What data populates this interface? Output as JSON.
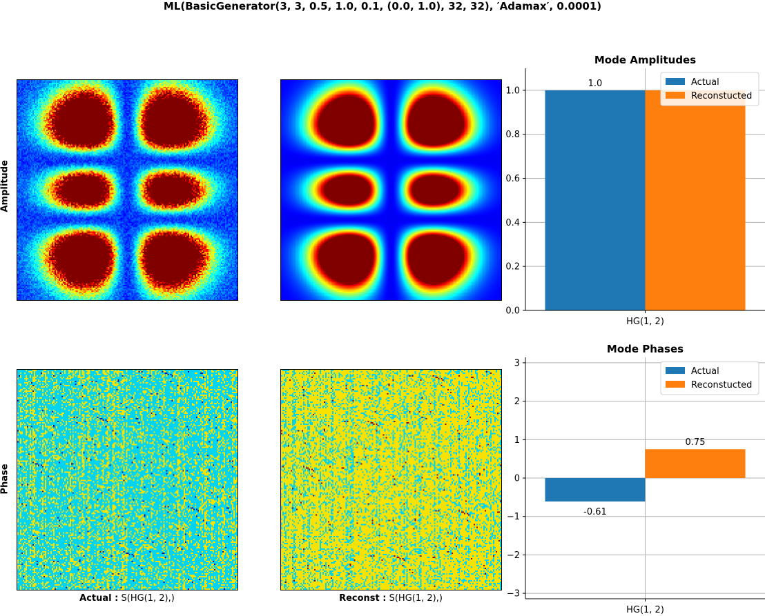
{
  "figure": {
    "title": "ML(BasicGenerator(3, 3, 0.5, 1.0, 0.1, (0.0, 1.0), 32, 32), ′Adamax′, 0.0001)",
    "row_labels": [
      "Amplitude",
      "Phase"
    ],
    "image_labels": [
      {
        "bold": "Actual :",
        "text": " S(HG(1, 2),)"
      },
      {
        "bold": "Reconst :",
        "text": " S(HG(1, 2),)"
      }
    ],
    "images": [
      {
        "name": "actual-amplitude",
        "kind": "amplitude",
        "mode": "HG(1, 2)",
        "noise": true,
        "colormap": "jet"
      },
      {
        "name": "reconstructed-amplitude",
        "kind": "amplitude",
        "mode": "HG(1, 2)",
        "noise": false,
        "colormap": "jet"
      },
      {
        "name": "actual-phase",
        "kind": "phase",
        "dominant": "cyan",
        "colormap": "jet"
      },
      {
        "name": "reconstructed-phase",
        "kind": "phase",
        "dominant": "yellow",
        "colormap": "jet"
      }
    ]
  },
  "chart_data": [
    {
      "type": "bar",
      "title": "Mode Amplitudes",
      "categories": [
        "HG(1, 2)"
      ],
      "series": [
        {
          "name": "Actual",
          "values": [
            1.0
          ],
          "color": "#1f77b4"
        },
        {
          "name": "Reconstucted",
          "values": [
            1.0
          ],
          "color": "#ff7f0e"
        }
      ],
      "data_labels": [
        "1.0",
        ""
      ],
      "ylim": [
        0,
        1.1
      ],
      "yticks": [
        0.0,
        0.2,
        0.4,
        0.6,
        0.8,
        1.0
      ],
      "ytick_labels": [
        "0.0",
        "0.2",
        "0.4",
        "0.6",
        "0.8",
        "1.0"
      ],
      "grid": true,
      "legend": "top-right"
    },
    {
      "type": "bar",
      "title": "Mode Phases",
      "categories": [
        "HG(1, 2)"
      ],
      "series": [
        {
          "name": "Actual",
          "values": [
            -0.61
          ],
          "color": "#1f77b4"
        },
        {
          "name": "Reconstucted",
          "values": [
            0.75
          ],
          "color": "#ff7f0e"
        }
      ],
      "data_labels": [
        "-0.61",
        "0.75"
      ],
      "ylim": [
        -3.14159,
        3.14159
      ],
      "yticks": [
        -3,
        -2,
        -1,
        0,
        1,
        2,
        3
      ],
      "ytick_labels": [
        "−3",
        "−2",
        "−1",
        "0",
        "1",
        "2",
        "3"
      ],
      "grid": true,
      "legend": "top-right"
    }
  ]
}
